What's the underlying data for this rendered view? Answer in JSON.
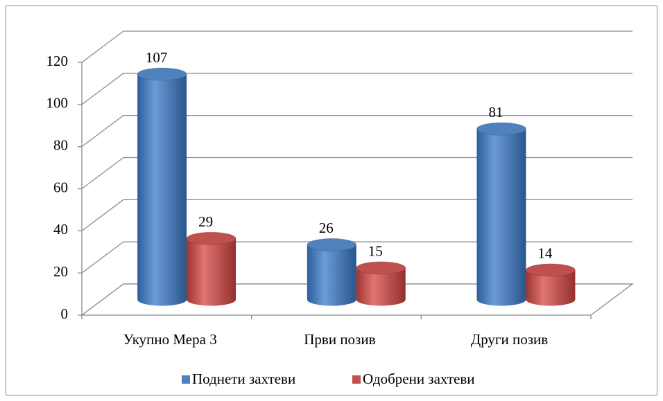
{
  "chart_data": {
    "type": "bar3d",
    "categories": [
      "Укупно Мера 3",
      "Први позив",
      "Други позив"
    ],
    "series": [
      {
        "name": "Поднети захтеви",
        "color": "#4f81bd",
        "values": [
          107,
          26,
          81
        ]
      },
      {
        "name": "Одобрени захтеви",
        "color": "#c0504d",
        "values": [
          29,
          15,
          14
        ]
      }
    ],
    "ylim": [
      0,
      120
    ],
    "yticks": [
      0,
      20,
      40,
      60,
      80,
      100,
      120
    ],
    "grid": true,
    "legend": "bottom"
  }
}
